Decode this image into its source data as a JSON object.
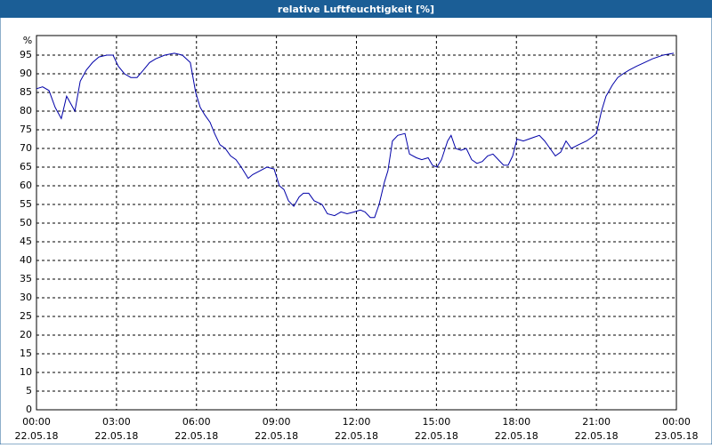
{
  "chart_data": {
    "type": "line",
    "title": "relative Luftfeuchtigkeit [%]",
    "y_label": "%",
    "xlim": [
      0,
      24
    ],
    "ylim": [
      0,
      100
    ],
    "yticks": [
      0,
      5,
      10,
      15,
      20,
      25,
      30,
      35,
      40,
      45,
      50,
      55,
      60,
      65,
      70,
      75,
      80,
      85,
      90,
      95
    ],
    "xticks": [
      {
        "value": 0,
        "label": "00:00",
        "date": "22.05.18"
      },
      {
        "value": 3,
        "label": "03:00",
        "date": "22.05.18"
      },
      {
        "value": 6,
        "label": "06:00",
        "date": "22.05.18"
      },
      {
        "value": 9,
        "label": "09:00",
        "date": "22.05.18"
      },
      {
        "value": 12,
        "label": "12:00",
        "date": "22.05.18"
      },
      {
        "value": 15,
        "label": "15:00",
        "date": "22.05.18"
      },
      {
        "value": 18,
        "label": "18:00",
        "date": "22.05.18"
      },
      {
        "value": 21,
        "label": "21:00",
        "date": "22.05.18"
      },
      {
        "value": 24,
        "label": "00:00",
        "date": "23.05.18"
      }
    ],
    "grid": true,
    "series": [
      {
        "color": "#0000a8",
        "x": [
          0,
          0.23,
          0.47,
          0.7,
          0.93,
          1.13,
          1.44,
          1.64,
          1.87,
          2.1,
          2.34,
          2.64,
          2.87,
          3.07,
          3.3,
          3.54,
          3.77,
          4.01,
          4.24,
          4.47,
          4.81,
          5.17,
          5.47,
          5.77,
          5.97,
          6.14,
          6.31,
          6.51,
          6.68,
          6.88,
          7.08,
          7.28,
          7.48,
          7.68,
          7.94,
          8.11,
          8.38,
          8.64,
          8.91,
          9.11,
          9.28,
          9.45,
          9.65,
          9.85,
          10.01,
          10.21,
          10.41,
          10.71,
          10.91,
          11.18,
          11.42,
          11.65,
          11.92,
          12.15,
          12.32,
          12.52,
          12.68,
          12.85,
          13.05,
          13.18,
          13.35,
          13.55,
          13.82,
          13.99,
          14.25,
          14.45,
          14.69,
          14.85,
          15.02,
          15.19,
          15.42,
          15.55,
          15.72,
          15.92,
          16.12,
          16.32,
          16.52,
          16.72,
          16.92,
          17.12,
          17.32,
          17.52,
          17.69,
          17.86,
          18.02,
          18.26,
          18.46,
          18.66,
          18.86,
          19.06,
          19.26,
          19.46,
          19.66,
          19.86,
          20.06,
          20.33,
          20.63,
          20.83,
          21.0,
          21.19,
          21.36,
          21.6,
          21.8,
          22.0,
          22.23,
          22.5,
          22.8,
          23.1,
          23.5,
          23.9
        ],
        "values": [
          86,
          86.5,
          85.5,
          81,
          78,
          84,
          80,
          88,
          91,
          93,
          94.5,
          95,
          95,
          92,
          90,
          89,
          89,
          91,
          93,
          94,
          95,
          95.5,
          95,
          93,
          85,
          81,
          79,
          77,
          74,
          71,
          70,
          68,
          67,
          65,
          62,
          63,
          64,
          65,
          64.5,
          60,
          59,
          56,
          54.5,
          57,
          58,
          58,
          56,
          55,
          52.5,
          52,
          53,
          52.5,
          53,
          53.5,
          53,
          51.5,
          51.5,
          55,
          61,
          64,
          72,
          73.5,
          74,
          68.5,
          67.5,
          67,
          67.5,
          65.5,
          65,
          67,
          72,
          73.5,
          70,
          69.5,
          70,
          67,
          66,
          66.5,
          68,
          68.5,
          67,
          65.5,
          65.5,
          68,
          72.5,
          72,
          72.5,
          73,
          73.5,
          72,
          70,
          68,
          69,
          72,
          70,
          71,
          72,
          73,
          74,
          80,
          84,
          87,
          89,
          90,
          91,
          92,
          93,
          94,
          95,
          95.5
        ]
      }
    ]
  }
}
